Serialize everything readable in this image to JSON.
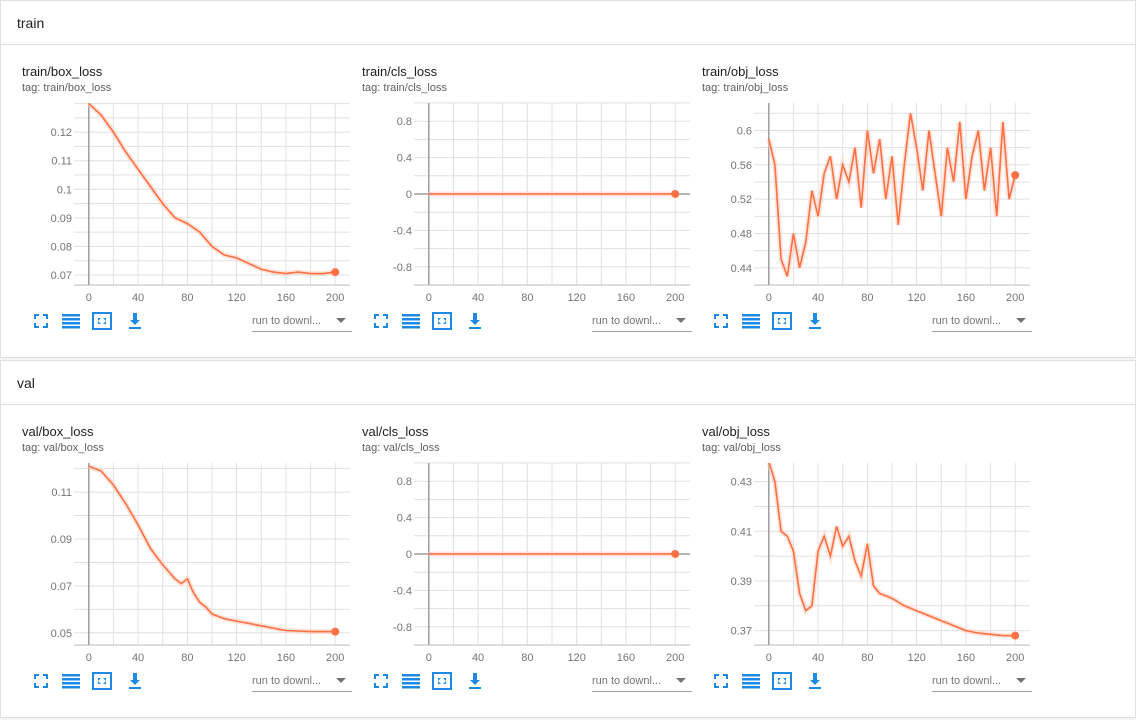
{
  "colors": {
    "accent": "#ff7043",
    "icon": "#1e88e5",
    "grid": "#e0e0e0",
    "axis": "#9e9e9e"
  },
  "toolbar": {
    "fullscreen_icon": "fullscreen-icon",
    "lines_icon": "data-lines-icon",
    "fit_icon": "fit-domain-icon",
    "download_icon": "download-icon",
    "run_select_label": "run to downl..."
  },
  "sections": [
    {
      "title": "train",
      "cards": [
        {
          "title": "train/box_loss",
          "tag": "tag: train/box_loss",
          "chart_data": {
            "type": "line",
            "xlim": [
              -12,
              212
            ],
            "ylim": [
              0.0665,
              0.1302
            ],
            "xticks": [
              0,
              40,
              80,
              120,
              160,
              200
            ],
            "yticks": [
              0.07,
              0.08,
              0.09,
              0.1,
              0.11,
              0.12
            ],
            "ytick_labels": [
              "0.07",
              "0.08",
              "0.09",
              "0.1",
              "0.11",
              "0.12"
            ],
            "x": [
              0,
              10,
              20,
              30,
              40,
              50,
              60,
              70,
              80,
              90,
              100,
              110,
              120,
              130,
              140,
              150,
              160,
              170,
              180,
              190,
              200
            ],
            "series": [
              {
                "values": [
                  0.13,
                  0.126,
                  0.12,
                  0.113,
                  0.107,
                  0.101,
                  0.095,
                  0.09,
                  0.088,
                  0.085,
                  0.08,
                  0.077,
                  0.076,
                  0.074,
                  0.072,
                  0.071,
                  0.0705,
                  0.071,
                  0.0705,
                  0.0705,
                  0.071
                ]
              }
            ]
          }
        },
        {
          "title": "train/cls_loss",
          "tag": "tag: train/cls_loss",
          "chart_data": {
            "type": "line",
            "xlim": [
              -12,
              212
            ],
            "ylim": [
              -1,
              1
            ],
            "xticks": [
              0,
              40,
              80,
              120,
              160,
              200
            ],
            "yticks": [
              -0.8,
              -0.4,
              0,
              0.4,
              0.8
            ],
            "ytick_labels": [
              "-0.8",
              "-0.4",
              "0",
              "0.4",
              "0.8"
            ],
            "x": [
              0,
              200
            ],
            "series": [
              {
                "values": [
                  0,
                  0
                ]
              }
            ]
          }
        },
        {
          "title": "train/obj_loss",
          "tag": "tag: train/obj_loss",
          "chart_data": {
            "type": "line",
            "xlim": [
              -12,
              212
            ],
            "ylim": [
              0.42,
              0.632
            ],
            "xticks": [
              0,
              40,
              80,
              120,
              160,
              200
            ],
            "yticks": [
              0.44,
              0.48,
              0.52,
              0.56,
              0.6
            ],
            "ytick_labels": [
              "0.44",
              "0.48",
              "0.52",
              "0.56",
              "0.6"
            ],
            "x": [
              0,
              5,
              10,
              15,
              20,
              25,
              30,
              35,
              40,
              45,
              50,
              55,
              60,
              65,
              70,
              75,
              80,
              85,
              90,
              95,
              100,
              105,
              110,
              115,
              120,
              125,
              130,
              135,
              140,
              145,
              150,
              155,
              160,
              165,
              170,
              175,
              180,
              185,
              190,
              195,
              200
            ],
            "series": [
              {
                "values": [
                  0.59,
                  0.56,
                  0.45,
                  0.43,
                  0.48,
                  0.44,
                  0.47,
                  0.53,
                  0.5,
                  0.55,
                  0.57,
                  0.52,
                  0.56,
                  0.54,
                  0.58,
                  0.51,
                  0.6,
                  0.55,
                  0.59,
                  0.52,
                  0.57,
                  0.49,
                  0.56,
                  0.62,
                  0.58,
                  0.53,
                  0.6,
                  0.55,
                  0.5,
                  0.58,
                  0.54,
                  0.61,
                  0.52,
                  0.57,
                  0.6,
                  0.53,
                  0.58,
                  0.5,
                  0.61,
                  0.52,
                  0.548
                ]
              }
            ]
          }
        }
      ]
    },
    {
      "title": "val",
      "cards": [
        {
          "title": "val/box_loss",
          "tag": "tag: val/box_loss",
          "chart_data": {
            "type": "line",
            "xlim": [
              -12,
              212
            ],
            "ylim": [
              0.0448,
              0.1224
            ],
            "xticks": [
              0,
              40,
              80,
              120,
              160,
              200
            ],
            "yticks": [
              0.05,
              0.07,
              0.09,
              0.11
            ],
            "ytick_labels": [
              "0.05",
              "0.07",
              "0.09",
              "0.11"
            ],
            "x": [
              0,
              10,
              20,
              30,
              40,
              50,
              60,
              70,
              75,
              80,
              85,
              90,
              95,
              100,
              110,
              120,
              140,
              160,
              180,
              200
            ],
            "series": [
              {
                "values": [
                  0.121,
                  0.119,
                  0.113,
                  0.105,
                  0.096,
                  0.086,
                  0.079,
                  0.073,
                  0.071,
                  0.073,
                  0.067,
                  0.063,
                  0.061,
                  0.058,
                  0.056,
                  0.055,
                  0.053,
                  0.051,
                  0.0505,
                  0.0505
                ]
              }
            ]
          }
        },
        {
          "title": "val/cls_loss",
          "tag": "tag: val/cls_loss",
          "chart_data": {
            "type": "line",
            "xlim": [
              -12,
              212
            ],
            "ylim": [
              -1,
              1
            ],
            "xticks": [
              0,
              40,
              80,
              120,
              160,
              200
            ],
            "yticks": [
              -0.8,
              -0.4,
              0,
              0.4,
              0.8
            ],
            "ytick_labels": [
              "-0.8",
              "-0.4",
              "0",
              "0.4",
              "0.8"
            ],
            "x": [
              0,
              200
            ],
            "series": [
              {
                "values": [
                  0,
                  0
                ]
              }
            ]
          }
        },
        {
          "title": "val/obj_loss",
          "tag": "tag: val/obj_loss",
          "chart_data": {
            "type": "line",
            "xlim": [
              -12,
              212
            ],
            "ylim": [
              0.3642,
              0.4375
            ],
            "xticks": [
              0,
              40,
              80,
              120,
              160,
              200
            ],
            "yticks": [
              0.37,
              0.39,
              0.41,
              0.43
            ],
            "ytick_labels": [
              "0.37",
              "0.39",
              "0.41",
              "0.43"
            ],
            "x": [
              0,
              5,
              10,
              15,
              20,
              25,
              30,
              35,
              40,
              45,
              50,
              55,
              60,
              65,
              70,
              75,
              80,
              85,
              90,
              100,
              110,
              120,
              130,
              140,
              150,
              160,
              170,
              180,
              190,
              200
            ],
            "series": [
              {
                "values": [
                  0.438,
                  0.43,
                  0.41,
                  0.408,
                  0.402,
                  0.385,
                  0.378,
                  0.38,
                  0.402,
                  0.408,
                  0.4,
                  0.412,
                  0.404,
                  0.408,
                  0.398,
                  0.392,
                  0.405,
                  0.388,
                  0.385,
                  0.383,
                  0.38,
                  0.378,
                  0.376,
                  0.374,
                  0.372,
                  0.37,
                  0.369,
                  0.3685,
                  0.368,
                  0.368
                ]
              }
            ]
          }
        }
      ]
    }
  ]
}
